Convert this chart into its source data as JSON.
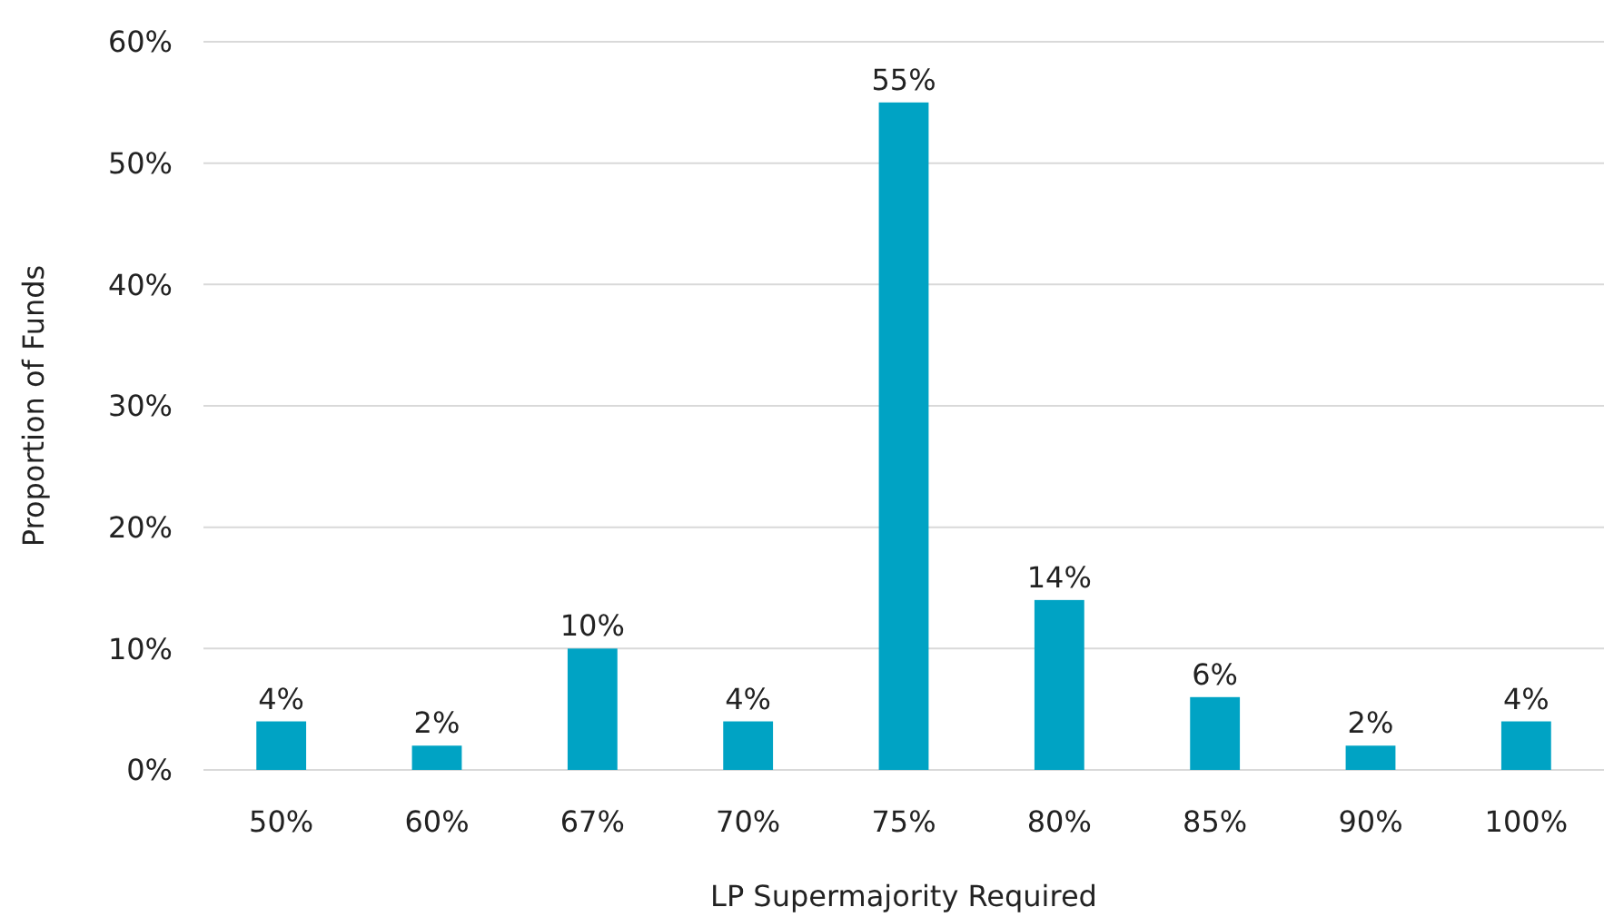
{
  "chart_data": {
    "type": "bar",
    "xlabel": "LP Supermajority Required",
    "ylabel": "Proportion of Funds",
    "categories": [
      "50%",
      "60%",
      "67%",
      "70%",
      "75%",
      "80%",
      "85%",
      "90%",
      "100%"
    ],
    "values": [
      4,
      2,
      10,
      4,
      55,
      14,
      6,
      2,
      4
    ],
    "value_labels": [
      "4%",
      "2%",
      "10%",
      "4%",
      "55%",
      "14%",
      "6%",
      "2%",
      "4%"
    ],
    "color": "#00a3c4",
    "ylim": [
      0,
      60
    ],
    "yticks": [
      {
        "value": 0,
        "label": "0%"
      },
      {
        "value": 10,
        "label": "10%"
      },
      {
        "value": 20,
        "label": "20%"
      },
      {
        "value": 30,
        "label": "30%"
      },
      {
        "value": 40,
        "label": "40%"
      },
      {
        "value": 50,
        "label": "50%"
      },
      {
        "value": 60,
        "label": "60%"
      }
    ],
    "grid": "y"
  }
}
